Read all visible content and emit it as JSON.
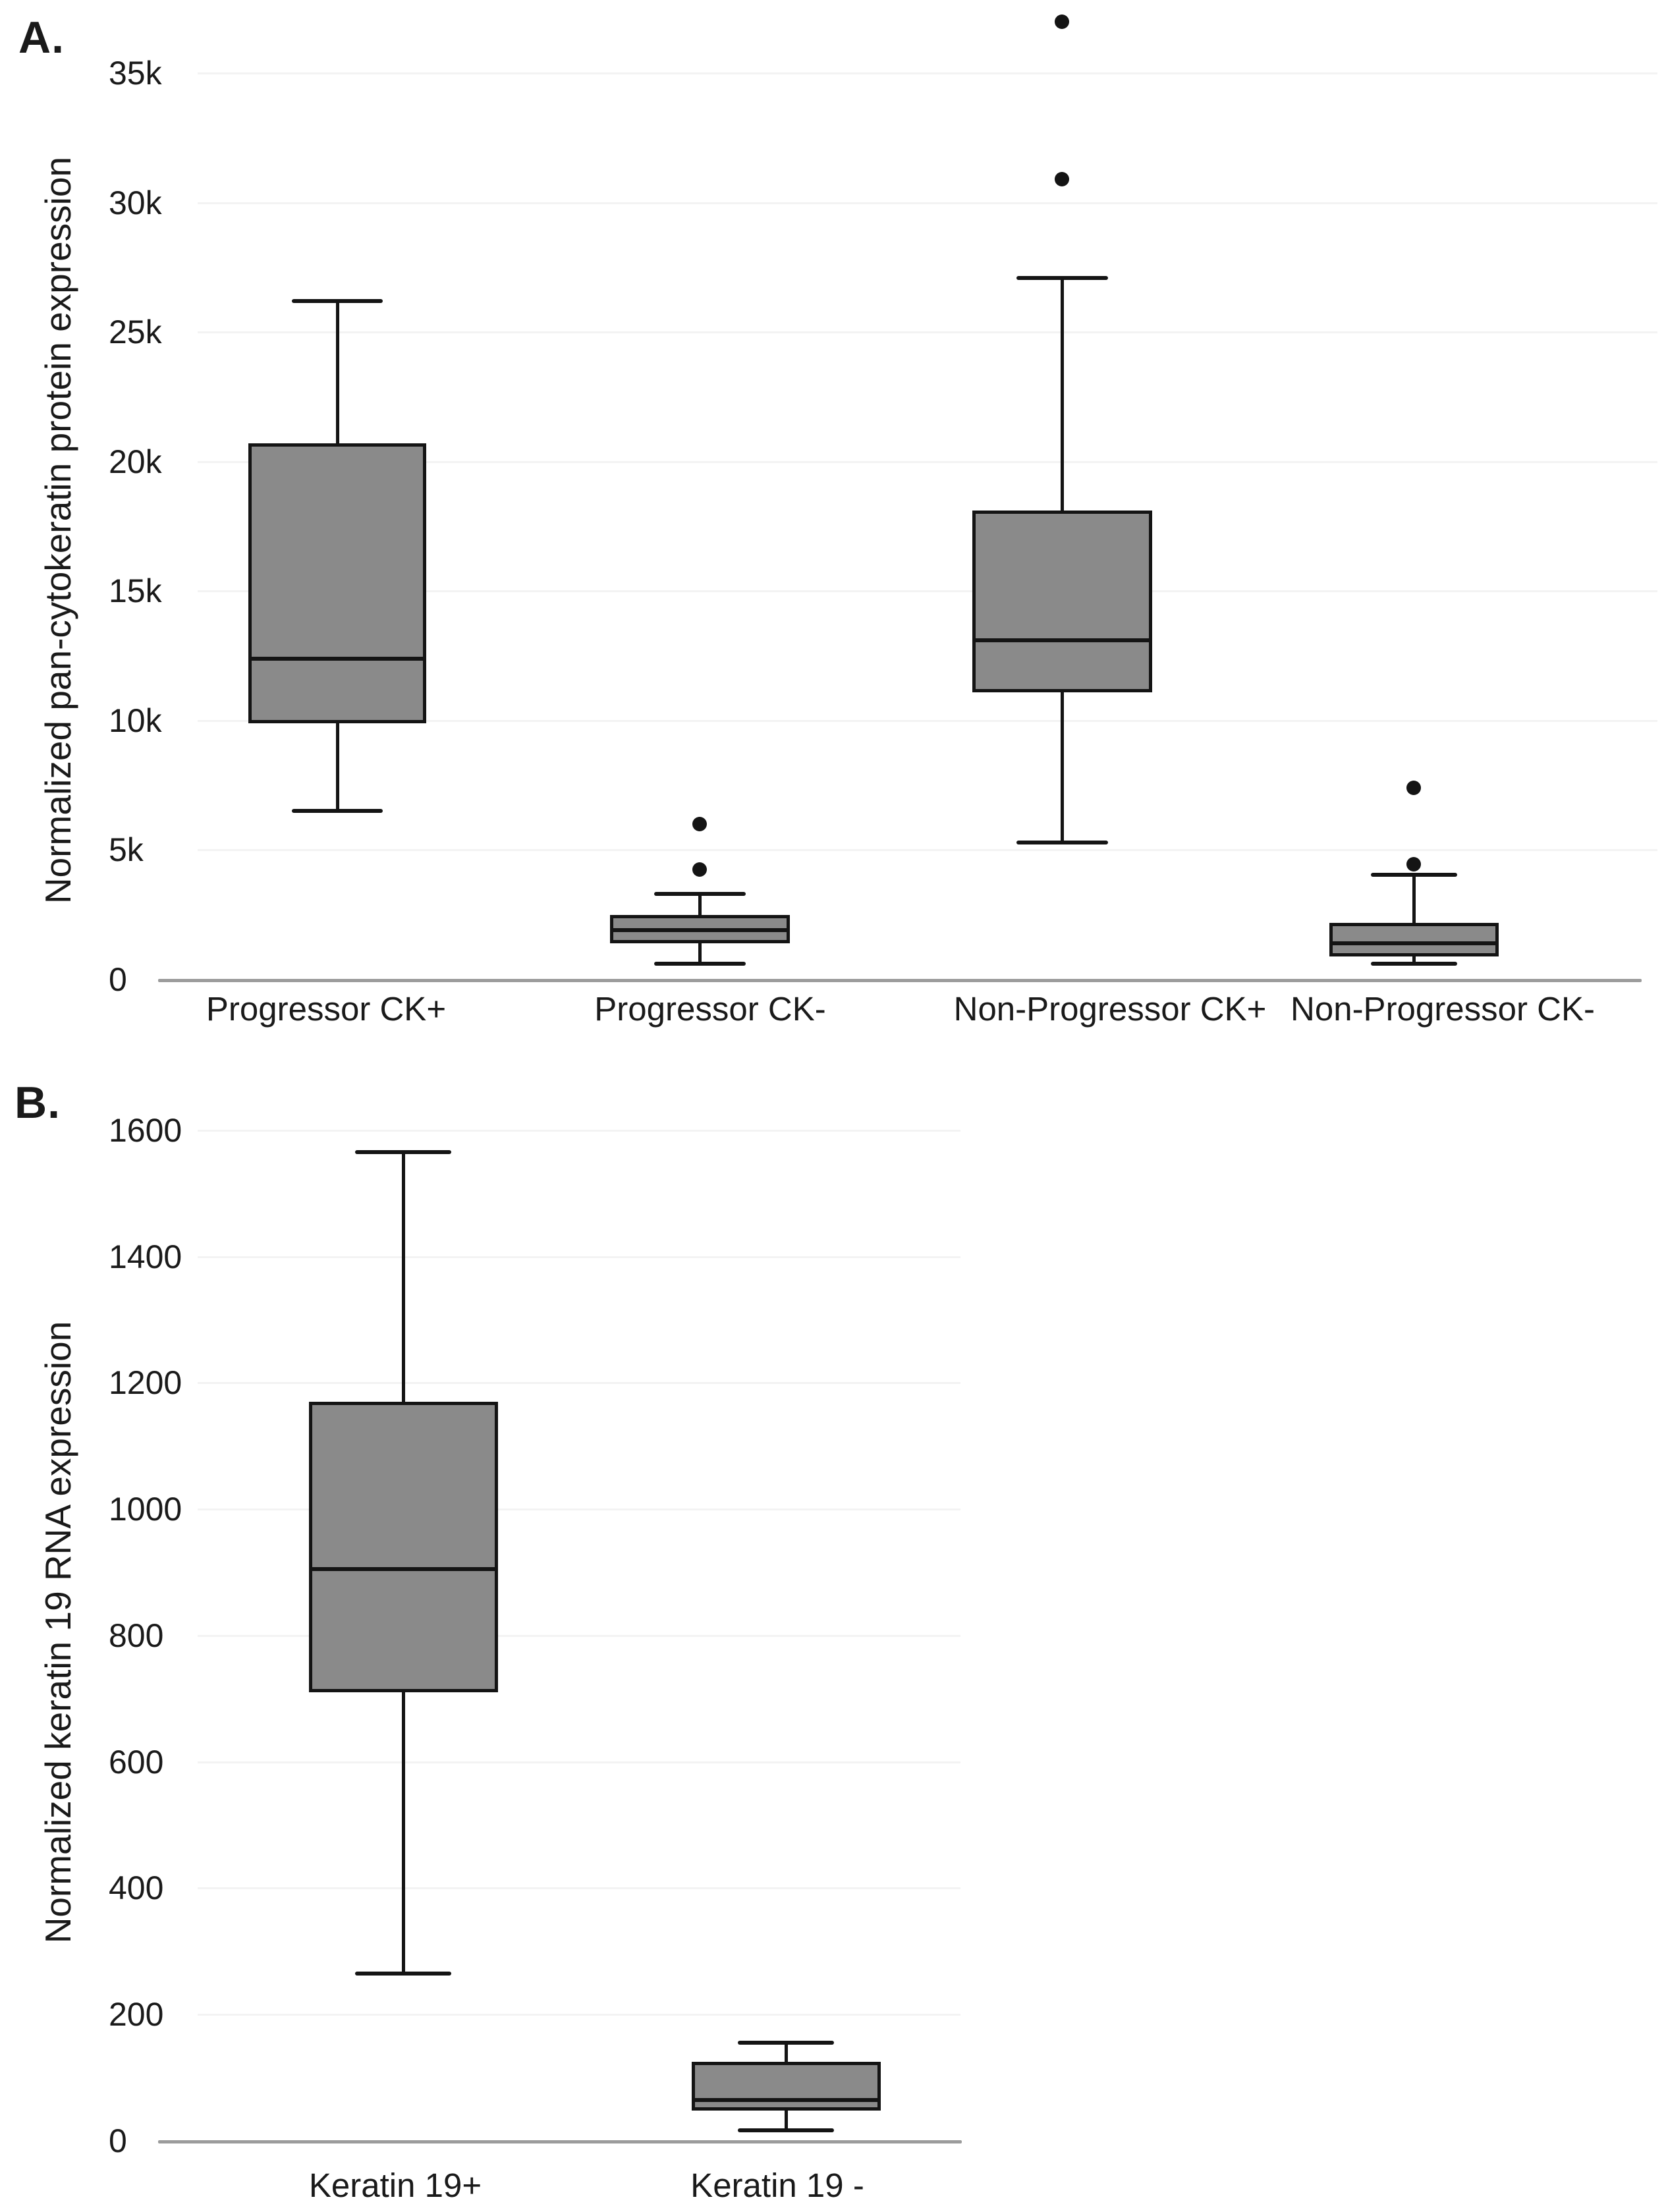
{
  "page": {
    "background": "#ffffff"
  },
  "colors": {
    "box_fill": "#8a8a8a",
    "stroke": "#141414",
    "axis_line": "#9c9c9c",
    "gridline": "#f3f3f3",
    "text": "#1a1a1a"
  },
  "chart_data": [
    {
      "id": "panel-a",
      "panel_label": "A.",
      "type": "box",
      "ylabel": "Normalized pan-cytokeratin protein expression",
      "xlabel": "",
      "ylim": [
        0,
        37500
      ],
      "grid": "horizontal-light",
      "legend": "none",
      "yticks": [
        {
          "value": 35000,
          "label": "35k"
        },
        {
          "value": 30000,
          "label": "30k"
        },
        {
          "value": 25000,
          "label": "25k"
        },
        {
          "value": 20000,
          "label": "20k"
        },
        {
          "value": 15000,
          "label": "15k"
        },
        {
          "value": 10000,
          "label": "10k"
        },
        {
          "value": 5000,
          "label": "5k"
        },
        {
          "value": 0,
          "label": "0"
        }
      ],
      "categories": [
        "Progressor CK+",
        "Progressor CK-",
        "Non-Progressor CK+",
        "Non-Progressor CK-"
      ],
      "series": [
        {
          "category": "Progressor CK+",
          "whisker_low": 6500,
          "q1": 9900,
          "median": 12400,
          "q3": 20700,
          "whisker_high": 26200,
          "outliers": []
        },
        {
          "category": "Progressor CK-",
          "whisker_low": 600,
          "q1": 1400,
          "median": 1900,
          "q3": 2500,
          "whisker_high": 3300,
          "outliers": [
            4250,
            6000
          ]
        },
        {
          "category": "Non-Progressor CK+",
          "whisker_low": 5300,
          "q1": 11100,
          "median": 13100,
          "q3": 18100,
          "whisker_high": 27100,
          "outliers": [
            30900,
            37000
          ]
        },
        {
          "category": "Non-Progressor CK-",
          "whisker_low": 600,
          "q1": 900,
          "median": 1400,
          "q3": 2200,
          "whisker_high": 4050,
          "outliers": [
            4450,
            7400
          ]
        }
      ]
    },
    {
      "id": "panel-b",
      "panel_label": "B.",
      "type": "box",
      "ylabel": "Normalized keratin 19 RNA expression",
      "xlabel": "",
      "ylim": [
        0,
        1650
      ],
      "grid": "horizontal-light",
      "legend": "none",
      "yticks": [
        {
          "value": 1600,
          "label": "1600"
        },
        {
          "value": 1400,
          "label": "1400"
        },
        {
          "value": 1200,
          "label": "1200"
        },
        {
          "value": 1000,
          "label": "1000"
        },
        {
          "value": 800,
          "label": "800"
        },
        {
          "value": 600,
          "label": "600"
        },
        {
          "value": 400,
          "label": "400"
        },
        {
          "value": 200,
          "label": "200"
        },
        {
          "value": 0,
          "label": "0"
        }
      ],
      "categories": [
        "Keratin 19+",
        "Keratin 19 -"
      ],
      "series": [
        {
          "category": "Keratin 19+",
          "whisker_low": 265,
          "q1": 710,
          "median": 905,
          "q3": 1170,
          "whisker_high": 1565,
          "outliers": []
        },
        {
          "category": "Keratin 19 -",
          "whisker_low": 17,
          "q1": 48,
          "median": 65,
          "q3": 125,
          "whisker_high": 155,
          "outliers": []
        }
      ]
    }
  ]
}
